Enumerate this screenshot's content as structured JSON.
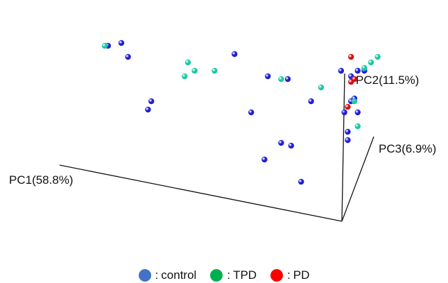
{
  "chart_data": {
    "type": "scatter",
    "axes": {
      "pc1": "PC1(58.8%)",
      "pc2": "PC2(11.5%)",
      "pc3": "PC3(6.9%)"
    },
    "legend": {
      "separator": ":",
      "placement": "bottom"
    },
    "series": [
      {
        "name": "control",
        "color": "#1f1fd6",
        "swatch_color": "#4472c4",
        "points": [
          [
            -4.9,
            3.5
          ],
          [
            -4.5,
            3.6
          ],
          [
            -4.3,
            3.1
          ],
          [
            -3.6,
            1.5
          ],
          [
            -3.7,
            1.2
          ],
          [
            -1.1,
            3.2
          ],
          [
            -0.6,
            1.1
          ],
          [
            -0.1,
            2.4
          ],
          [
            0.5,
            2.3
          ],
          [
            1.2,
            1.5
          ],
          [
            2.1,
            2.6
          ],
          [
            2.4,
            2.4
          ],
          [
            2.2,
            1.1
          ],
          [
            2.4,
            1.5
          ],
          [
            2.5,
            1.6
          ],
          [
            2.6,
            1.1
          ],
          [
            2.3,
            0.4
          ],
          [
            2.6,
            2.6
          ],
          [
            2.8,
            2.6
          ],
          [
            0.3,
            0.0
          ],
          [
            0.6,
            -0.1
          ],
          [
            -0.2,
            -0.6
          ],
          [
            0.9,
            -1.4
          ],
          [
            2.3,
            0.1
          ]
        ]
      },
      {
        "name": "TPD",
        "color": "#19c9a6",
        "swatch_color": "#00b050",
        "points": [
          [
            -5.0,
            3.5
          ],
          [
            -2.5,
            2.9
          ],
          [
            -2.3,
            2.6
          ],
          [
            -1.7,
            2.6
          ],
          [
            -2.6,
            2.4
          ],
          [
            0.3,
            2.3
          ],
          [
            1.5,
            2.0
          ],
          [
            2.8,
            2.7
          ],
          [
            3.0,
            2.9
          ],
          [
            3.2,
            3.1
          ],
          [
            2.5,
            1.5
          ],
          [
            2.6,
            0.6
          ]
        ]
      },
      {
        "name": "PD",
        "color": "#d61010",
        "swatch_color": "#ff0000",
        "points": [
          [
            2.4,
            3.1
          ],
          [
            2.4,
            2.2
          ],
          [
            2.5,
            2.3
          ],
          [
            2.3,
            1.3
          ]
        ]
      }
    ]
  }
}
